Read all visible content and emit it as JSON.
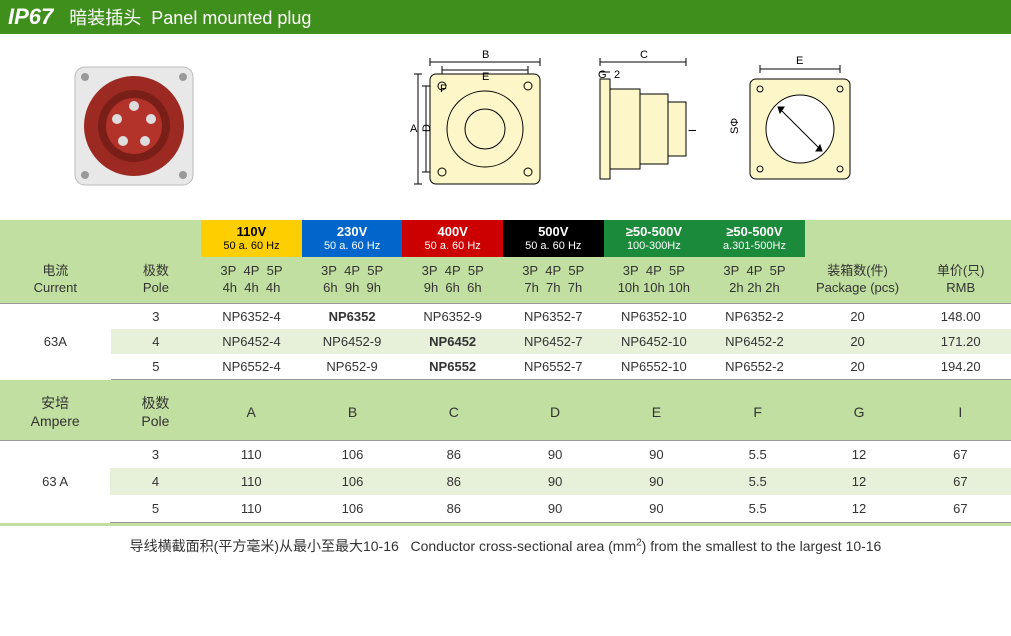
{
  "header": {
    "ip": "IP67",
    "cn": "暗装插头",
    "en": "Panel mounted plug"
  },
  "voltageHeaders": [
    {
      "label": "110V",
      "hz": "50 a. 60 Hz",
      "bg": "#fecf00",
      "fg": "#000000"
    },
    {
      "label": "230V",
      "hz": "50 a. 60 Hz",
      "bg": "#0066cc",
      "fg": "#ffffff"
    },
    {
      "label": "400V",
      "hz": "50 a. 60 Hz",
      "bg": "#cc0000",
      "fg": "#ffffff"
    },
    {
      "label": "500V",
      "hz": "50 a. 60 Hz",
      "bg": "#000000",
      "fg": "#ffffff"
    },
    {
      "label": "≥50-500V",
      "hz": "100-300Hz",
      "bg": "#1b8a3a",
      "fg": "#ffffff"
    },
    {
      "label": "≥50-500V",
      "hz": "a.301-500Hz",
      "bg": "#1b8a3a",
      "fg": "#ffffff"
    }
  ],
  "subhead": {
    "current_cn": "电流",
    "current_en": "Current",
    "pole_cn": "极数",
    "pole_en": "Pole",
    "pkg_cn": "装箱数(件)",
    "pkg_en": "Package (pcs)",
    "rmb_cn": "单价(只)",
    "rmb_en": "RMB",
    "pp_top": "3P  4P  5P",
    "pp_bot": [
      "4h  4h  4h",
      "6h  9h  9h",
      "9h  6h  6h",
      "7h  7h  7h",
      "10h 10h 10h",
      "2h 2h 2h"
    ]
  },
  "current": "63A",
  "rows": [
    {
      "pole": "3",
      "cells": [
        "NP6352-4",
        "NP6352",
        "NP6352-9",
        "NP6352-7",
        "NP6352-10",
        "NP6352-2"
      ],
      "bold": [
        1
      ],
      "pkg": "20",
      "rmb": "148.00"
    },
    {
      "pole": "4",
      "cells": [
        "NP6452-4",
        "NP6452-9",
        "NP6452",
        "NP6452-7",
        "NP6452-10",
        "NP6452-2"
      ],
      "bold": [
        2
      ],
      "pkg": "20",
      "rmb": "171.20"
    },
    {
      "pole": "5",
      "cells": [
        "NP6552-4",
        "NP652-9",
        "NP6552",
        "NP6552-7",
        "NP6552-10",
        "NP6552-2"
      ],
      "bold": [
        2
      ],
      "pkg": "20",
      "rmb": "194.20"
    }
  ],
  "dimHead": {
    "amp_cn": "安培",
    "amp_en": "Ampere",
    "pole_cn": "极数",
    "pole_en": "Pole",
    "cols": [
      "A",
      "B",
      "C",
      "D",
      "E",
      "F",
      "G",
      "I"
    ]
  },
  "dimCurrent": "63 A",
  "dimRows": [
    {
      "pole": "3",
      "v": [
        "110",
        "106",
        "86",
        "90",
        "90",
        "5.5",
        "12",
        "67"
      ]
    },
    {
      "pole": "4",
      "v": [
        "110",
        "106",
        "86",
        "90",
        "90",
        "5.5",
        "12",
        "67"
      ]
    },
    {
      "pole": "5",
      "v": [
        "110",
        "106",
        "86",
        "90",
        "90",
        "5.5",
        "12",
        "67"
      ]
    }
  ],
  "footnote": {
    "cn": "导线横截面积(平方毫米)从最小至最大10-16",
    "en_pre": "Conductor cross-sectional area (mm",
    "en_post": ") from the smallest to the largest 10-16"
  },
  "colors": {
    "headerBar": "#3f8f1c",
    "paleGreen": "#c1dfa0",
    "altRow": "#e7f1d9"
  }
}
